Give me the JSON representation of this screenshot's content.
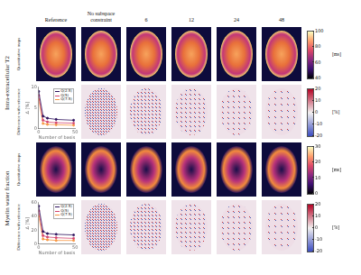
{
  "figure": {
    "columns": [
      "Reference",
      "No subspace constraint",
      "6",
      "12",
      "24",
      "48"
    ],
    "rows": [
      {
        "label": "Intra-extracellular T2",
        "panels": [
          {
            "label": "Quantitative maps",
            "colorbar": {
              "range": [
                40,
                100
              ],
              "ticks": [
                40,
                60,
                80,
                100
              ],
              "unit": "[ms]"
            }
          },
          {
            "label": "Difference with reference",
            "colorbar": {
              "range": [
                -20,
                20
              ],
              "ticks": [
                -20,
                -10,
                0,
                10,
                20
              ],
              "unit": "[%]"
            }
          }
        ]
      },
      {
        "label": "Myelin water fraction",
        "panels": [
          {
            "label": "Quantitative maps",
            "colorbar": {
              "range": [
                0,
                30
              ],
              "ticks": [
                0,
                10,
                20,
                30
              ],
              "unit": "[ms]"
            }
          },
          {
            "label": "Difference with reference",
            "colorbar": {
              "range": [
                -20,
                20
              ],
              "ticks": [
                -20,
                -10,
                0,
                10,
                20
              ],
              "unit": "[%]"
            }
          }
        ]
      }
    ]
  },
  "chart_data": [
    {
      "type": "line",
      "x_label": "Number of basis",
      "y_label": "Δ [%]",
      "x": [
        0,
        6,
        12,
        24,
        48
      ],
      "xlim": [
        0,
        50
      ],
      "xticks": [
        0,
        50
      ],
      "ylim": [
        0,
        10
      ],
      "yticks": [
        0,
        5,
        10
      ],
      "grid": false,
      "legend": "upper right",
      "marker": "circle",
      "series": [
        {
          "name": "Q(2.5)",
          "color": "#2c105c",
          "values": [
            9,
            3,
            2.5,
            2.2,
            2
          ]
        },
        {
          "name": "Q(5)",
          "color": "#d3436e",
          "values": [
            8,
            2,
            1.6,
            1.4,
            1.3
          ]
        },
        {
          "name": "Q(7.5)",
          "color": "#f89540",
          "values": [
            7,
            1.2,
            1,
            0.9,
            0.8
          ]
        }
      ]
    },
    {
      "type": "line",
      "x_label": "Number of basis",
      "y_label": "Δ [%]",
      "x": [
        0,
        6,
        12,
        24,
        48
      ],
      "xlim": [
        0,
        50
      ],
      "xticks": [
        0,
        50
      ],
      "ylim": [
        0,
        60
      ],
      "yticks": [
        0,
        20,
        40,
        60
      ],
      "grid": false,
      "legend": "upper right",
      "marker": "circle",
      "series": [
        {
          "name": "Q(2.5)",
          "color": "#2c105c",
          "values": [
            55,
            18,
            15,
            14,
            13
          ]
        },
        {
          "name": "Q(5)",
          "color": "#d3436e",
          "values": [
            48,
            12,
            10,
            9,
            8
          ]
        },
        {
          "name": "Q(7.5)",
          "color": "#f89540",
          "values": [
            40,
            7,
            6,
            5,
            5
          ]
        }
      ]
    }
  ]
}
